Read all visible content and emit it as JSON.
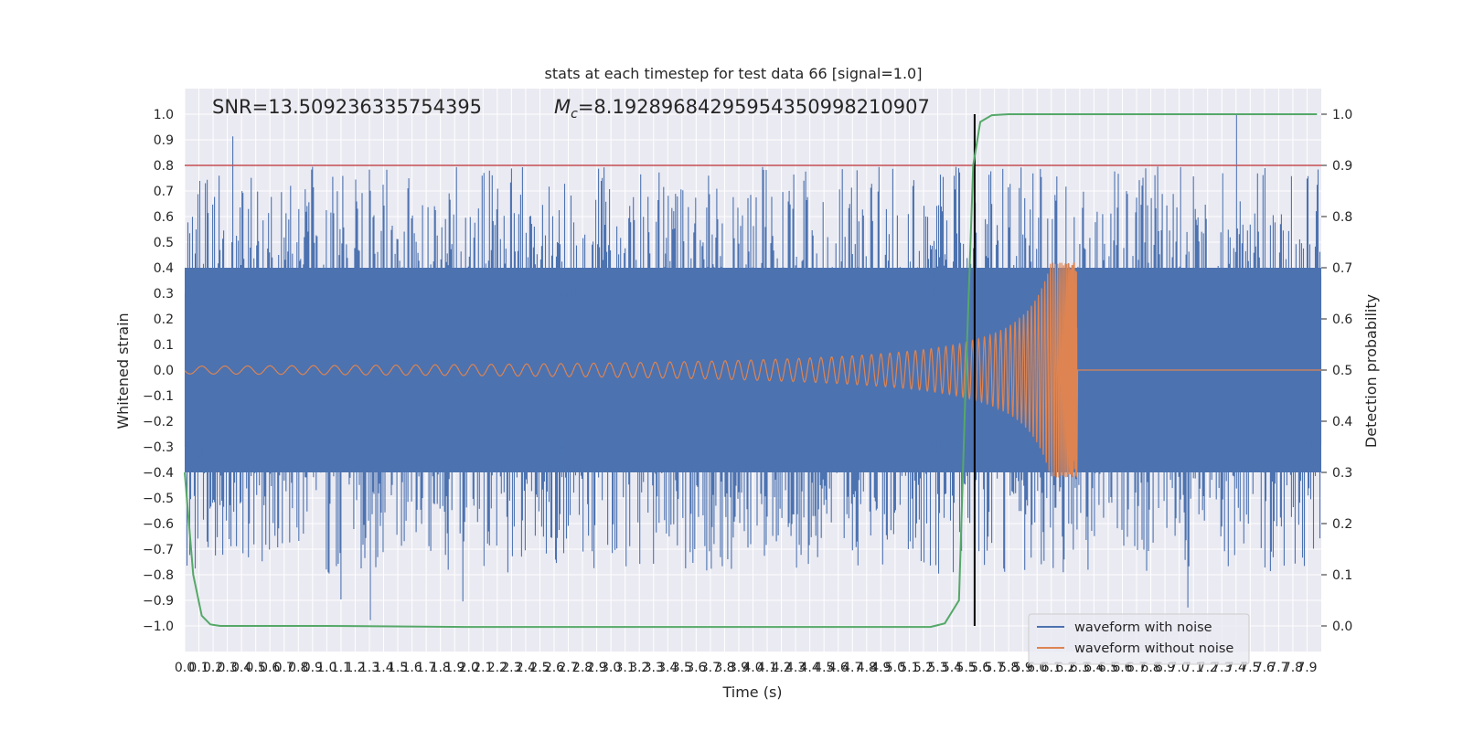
{
  "chart_data": {
    "type": "line",
    "title": "stats at each timestep for test data 66 [signal=1.0]",
    "xlabel": "Time (s)",
    "ylabel": "Whitened strain",
    "y2label": "Detection probability",
    "xlim": [
      0.0,
      8.0
    ],
    "ylim": [
      -1.1,
      1.1
    ],
    "y2lim": [
      -0.05,
      1.05
    ],
    "grid": true,
    "legend_position": "lower-right",
    "x_ticks": [
      0.0,
      0.1,
      0.2,
      0.3,
      0.4,
      0.5,
      0.6,
      0.7,
      0.8,
      0.9,
      1.0,
      1.1,
      1.2,
      1.3,
      1.4,
      1.5,
      1.6,
      1.7,
      1.8,
      1.9,
      2.0,
      2.1,
      2.2,
      2.3,
      2.4,
      2.5,
      2.6,
      2.7,
      2.8,
      2.9,
      3.0,
      3.1,
      3.2,
      3.3,
      3.4,
      3.5,
      3.6,
      3.7,
      3.8,
      3.9,
      4.0,
      4.1,
      4.2,
      4.3,
      4.4,
      4.5,
      4.6,
      4.7,
      4.8,
      4.9,
      5.0,
      5.1,
      5.2,
      5.3,
      5.4,
      5.5,
      5.6,
      5.7,
      5.8,
      5.9,
      6.0,
      6.1,
      6.2,
      6.3,
      6.4,
      6.5,
      6.6,
      6.7,
      6.8,
      6.9,
      7.0,
      7.1,
      7.2,
      7.3,
      7.4,
      7.5,
      7.6,
      7.7,
      7.8,
      7.9
    ],
    "x_tick_labels": [
      "0.0",
      "0.1",
      "0.2",
      "0.3",
      "0.4",
      "0.5",
      "0.6",
      "0.7",
      "0.8",
      "0.9",
      "1.0",
      "1.1",
      "1.2",
      "1.3",
      "1.4",
      "1.5",
      "1.6",
      "1.7",
      "1.8",
      "1.9",
      "2.0",
      "2.1",
      "2.2",
      "2.3",
      "2.4",
      "2.5",
      "2.6",
      "2.7",
      "2.8",
      "2.9",
      "3.0",
      "3.1",
      "3.2",
      "3.3",
      "3.4",
      "3.5",
      "3.6",
      "3.7",
      "3.8",
      "3.9",
      "4.0",
      "4.1",
      "4.2",
      "4.3",
      "4.4",
      "4.5",
      "4.6",
      "4.7",
      "4.8",
      "4.9",
      "5.0",
      "5.1",
      "5.2",
      "5.3",
      "5.4",
      "5.5",
      "5.6",
      "5.7",
      "5.8",
      "5.9",
      "6.0",
      "6.1",
      "6.2",
      "6.3",
      "6.4",
      "6.5",
      "6.6",
      "6.7",
      "6.8",
      "6.9",
      "7.0",
      "7.1",
      "7.2",
      "7.3",
      "7.4",
      "7.5",
      "7.6",
      "7.7",
      "7.8",
      "7.9"
    ],
    "y_ticks": [
      1.0,
      0.9,
      0.8,
      0.7,
      0.6,
      0.5,
      0.4,
      0.3,
      0.2,
      0.1,
      0.0,
      -0.1,
      -0.2,
      -0.3,
      -0.4,
      -0.5,
      -0.6,
      -0.7,
      -0.8,
      -0.9,
      -1.0
    ],
    "y_tick_labels": [
      "1.0",
      "0.9",
      "0.8",
      "0.7",
      "0.6",
      "0.5",
      "0.4",
      "0.3",
      "0.2",
      "0.1",
      "0.0",
      "−0.1",
      "−0.2",
      "−0.3",
      "−0.4",
      "−0.5",
      "−0.6",
      "−0.7",
      "−0.8",
      "−0.9",
      "−1.0"
    ],
    "y2_ticks": [
      1.0,
      0.9,
      0.8,
      0.7,
      0.6,
      0.5,
      0.4,
      0.3,
      0.2,
      0.1,
      0.0
    ],
    "y2_tick_labels": [
      "1.0",
      "0.9",
      "0.8",
      "0.7",
      "0.6",
      "0.5",
      "0.4",
      "0.3",
      "0.2",
      "0.1",
      "0.0"
    ],
    "annotations": {
      "snr_text": "SNR=13.509236335754395",
      "mc_symbol": "M",
      "mc_subscript": "c",
      "mc_text": "=8.19289684295954350998210907"
    },
    "threshold_line": {
      "value": 0.9,
      "axis": "y2",
      "color": "#c44e52"
    },
    "event_marker": {
      "x": 5.56,
      "color": "#000000"
    },
    "series": [
      {
        "name": "waveform with noise",
        "color": "#4c72b0",
        "kind": "noise",
        "band_half_width": 0.4,
        "spike_max": 1.0,
        "spike_min": -0.99
      },
      {
        "name": "waveform without noise",
        "color": "#dd8452",
        "kind": "chirp",
        "start_amplitude": 0.015,
        "peak_amplitude": 0.42,
        "trough_amplitude": -0.42,
        "merger_time": 6.28
      },
      {
        "name": "",
        "color": "#55a868",
        "kind": "detection_probability",
        "axis": "y2",
        "points": [
          [
            0.0,
            0.3
          ],
          [
            0.03,
            0.2
          ],
          [
            0.06,
            0.1
          ],
          [
            0.12,
            0.02
          ],
          [
            0.18,
            0.003
          ],
          [
            0.25,
            0.0
          ],
          [
            1.0,
            0.0
          ],
          [
            2.0,
            -0.002
          ],
          [
            3.0,
            -0.002
          ],
          [
            4.0,
            -0.002
          ],
          [
            5.25,
            -0.002
          ],
          [
            5.35,
            0.005
          ],
          [
            5.45,
            0.05
          ],
          [
            5.5,
            0.5
          ],
          [
            5.55,
            0.9
          ],
          [
            5.6,
            0.985
          ],
          [
            5.68,
            0.998
          ],
          [
            5.8,
            1.0
          ],
          [
            6.5,
            1.0
          ],
          [
            7.5,
            1.0
          ],
          [
            7.97,
            1.0
          ]
        ]
      }
    ]
  }
}
